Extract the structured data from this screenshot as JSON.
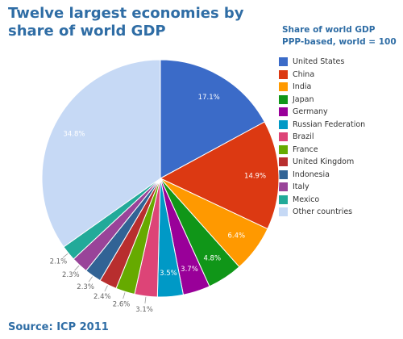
{
  "header": {
    "title": "Twelve largest economies by share of world GDP"
  },
  "legend": {
    "title_line1": "Share of world GDP",
    "title_line2": "PPP-based, world = 100"
  },
  "footer": {
    "source": "Source: ICP 2011"
  },
  "chart_data": {
    "type": "pie",
    "title": "Twelve largest economies by share of world GDP",
    "legend_title": "Share of world GDP PPP-based, world = 100",
    "legend_placement": "right",
    "unit": "%",
    "slices": [
      {
        "name": "United States",
        "value": 17.1,
        "label": "17.1%",
        "color": "#3b6bc8",
        "label_color": "#ffffff"
      },
      {
        "name": "China",
        "value": 14.9,
        "label": "14.9%",
        "color": "#dc3912",
        "label_color": "#ffffff"
      },
      {
        "name": "India",
        "value": 6.4,
        "label": "6.4%",
        "color": "#ff9900",
        "label_color": "#ffffff"
      },
      {
        "name": "Japan",
        "value": 4.8,
        "label": "4.8%",
        "color": "#109618",
        "label_color": "#ffffff"
      },
      {
        "name": "Germany",
        "value": 3.7,
        "label": "3.7%",
        "color": "#990099",
        "label_color": "#ffffff"
      },
      {
        "name": "Russian Federation",
        "value": 3.5,
        "label": "3.5%",
        "color": "#0099c6",
        "label_color": "#ffffff"
      },
      {
        "name": "Brazil",
        "value": 3.1,
        "label": "3.1%",
        "color": "#dd4477",
        "label_color": "#666666"
      },
      {
        "name": "France",
        "value": 2.6,
        "label": "2.6%",
        "color": "#66aa00",
        "label_color": "#666666"
      },
      {
        "name": "United Kingdom",
        "value": 2.4,
        "label": "2.4%",
        "color": "#b82e2e",
        "label_color": "#666666"
      },
      {
        "name": "Indonesia",
        "value": 2.3,
        "label": "2.3%",
        "color": "#316395",
        "label_color": "#666666"
      },
      {
        "name": "Italy",
        "value": 2.3,
        "label": "2.3%",
        "color": "#994499",
        "label_color": "#666666"
      },
      {
        "name": "Mexico",
        "value": 2.1,
        "label": "2.1%",
        "color": "#22aa99",
        "label_color": "#666666"
      },
      {
        "name": "Other countries",
        "value": 34.8,
        "label": "34.8%",
        "color": "#c6d9f5",
        "label_color": "#ffffff"
      }
    ]
  }
}
